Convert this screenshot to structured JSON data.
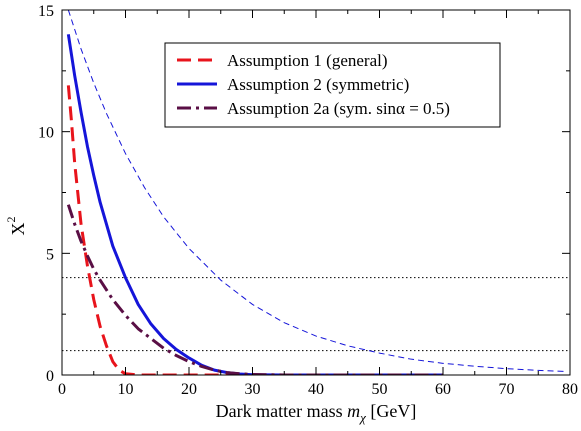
{
  "chart_data": {
    "type": "line",
    "xlabel": "Dark matter mass",
    "xlabel_symbol": "m",
    "xlabel_subscript": "χ",
    "xlabel_unit": "[GeV]",
    "ylabel": "X",
    "ylabel_superscript": "2",
    "xlim": [
      0,
      80
    ],
    "ylim": [
      0,
      15
    ],
    "xticks": [
      0,
      10,
      20,
      30,
      40,
      50,
      60,
      70,
      80
    ],
    "yticks": [
      0,
      5,
      10,
      15
    ],
    "grid": false,
    "legend_position": "top-center",
    "reference_lines": [
      {
        "y": 4,
        "style": "dotted",
        "color": "#000000"
      },
      {
        "y": 1,
        "style": "dotted",
        "color": "#000000"
      }
    ],
    "series": [
      {
        "name": "Assumption 1 (general)",
        "color": "#e8141c",
        "style": "long-dash",
        "width": 3,
        "legend": true,
        "points": [
          [
            1.0,
            11.9
          ],
          [
            1.5,
            10.4
          ],
          [
            2,
            8.7
          ],
          [
            3,
            6.2
          ],
          [
            4,
            4.5
          ],
          [
            5,
            3.1
          ],
          [
            6,
            2.0
          ],
          [
            7,
            1.2
          ],
          [
            8,
            0.55
          ],
          [
            9,
            0.2
          ],
          [
            10,
            0.05
          ],
          [
            12,
            0.0
          ],
          [
            20,
            0.0
          ],
          [
            30,
            0.0
          ],
          [
            40,
            0.0
          ],
          [
            50,
            0.0
          ],
          [
            60,
            0.0
          ]
        ]
      },
      {
        "name": "Assumption 2 (symmetric)",
        "color": "#1515d9",
        "style": "solid",
        "width": 3,
        "legend": true,
        "points": [
          [
            1,
            14.0
          ],
          [
            2,
            12.3
          ],
          [
            3,
            10.8
          ],
          [
            4,
            9.4
          ],
          [
            5,
            8.2
          ],
          [
            6,
            7.1
          ],
          [
            8,
            5.3
          ],
          [
            10,
            4.0
          ],
          [
            12,
            2.9
          ],
          [
            14,
            2.1
          ],
          [
            16,
            1.5
          ],
          [
            18,
            1.05
          ],
          [
            20,
            0.7
          ],
          [
            22,
            0.4
          ],
          [
            24,
            0.2
          ],
          [
            26,
            0.1
          ],
          [
            28,
            0.04
          ],
          [
            30,
            0.01
          ],
          [
            35,
            0.0
          ],
          [
            40,
            0.0
          ],
          [
            50,
            0.0
          ],
          [
            60,
            0.0
          ]
        ]
      },
      {
        "name": "Assumption 2a (sym. sinα = 0.5)",
        "color": "#5a0f45",
        "style": "dash-dot",
        "width": 3,
        "legend": true,
        "points": [
          [
            1,
            7.0
          ],
          [
            2,
            6.2
          ],
          [
            3,
            5.5
          ],
          [
            4,
            4.9
          ],
          [
            5,
            4.35
          ],
          [
            6,
            3.9
          ],
          [
            8,
            3.1
          ],
          [
            10,
            2.45
          ],
          [
            12,
            1.9
          ],
          [
            14,
            1.5
          ],
          [
            16,
            1.1
          ],
          [
            18,
            0.8
          ],
          [
            20,
            0.55
          ],
          [
            22,
            0.35
          ],
          [
            24,
            0.2
          ],
          [
            26,
            0.1
          ],
          [
            28,
            0.05
          ],
          [
            30,
            0.02
          ],
          [
            35,
            0.0
          ],
          [
            40,
            0.0
          ],
          [
            50,
            0.0
          ],
          [
            60,
            0.0
          ]
        ]
      },
      {
        "name": "",
        "color": "#1515d9",
        "style": "thin-dash",
        "width": 1,
        "legend": false,
        "points": [
          [
            1,
            15.0
          ],
          [
            3,
            13.4
          ],
          [
            5,
            12.0
          ],
          [
            7,
            10.75
          ],
          [
            10,
            9.1
          ],
          [
            13,
            7.7
          ],
          [
            16,
            6.5
          ],
          [
            20,
            5.2
          ],
          [
            25,
            3.9
          ],
          [
            30,
            2.9
          ],
          [
            35,
            2.15
          ],
          [
            40,
            1.6
          ],
          [
            45,
            1.2
          ],
          [
            50,
            0.9
          ],
          [
            55,
            0.65
          ],
          [
            60,
            0.48
          ],
          [
            65,
            0.36
          ],
          [
            70,
            0.26
          ],
          [
            75,
            0.19
          ],
          [
            79,
            0.15
          ]
        ]
      }
    ]
  }
}
